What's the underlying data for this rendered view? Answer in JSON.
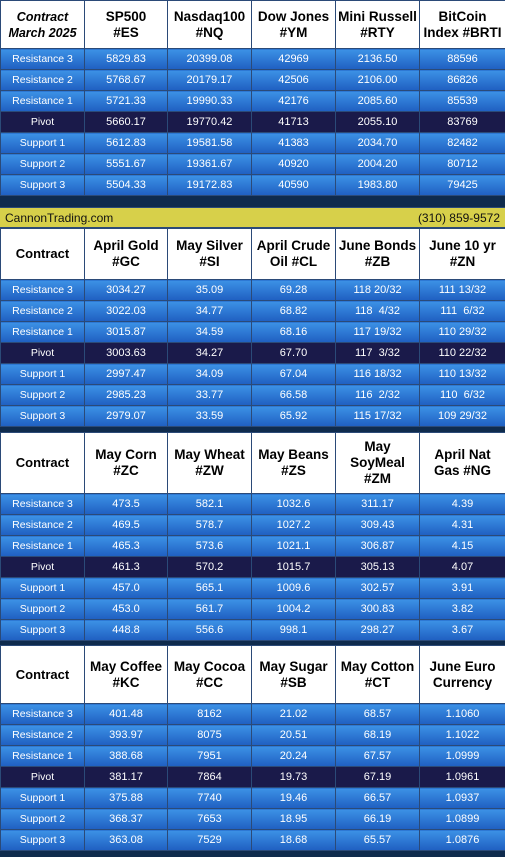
{
  "labels": {
    "contract": "Contract",
    "contract_month": "Contract\nMarch 2025",
    "rows": [
      "Resistance 3",
      "Resistance 2",
      "Resistance 1",
      "Pivot",
      "Support 1",
      "Support 2",
      "Support 3"
    ]
  },
  "banner": {
    "site": "CannonTrading.com",
    "phone": "(310) 859-9572"
  },
  "sections": [
    {
      "headers": [
        "Contract\nMarch 2025",
        "SP500\n#ES",
        "Nasdaq100\n#NQ",
        "Dow Jones\n#YM",
        "Mini Russell\n#RTY",
        "BitCoin\nIndex #BRTI"
      ],
      "values": [
        [
          "5829.83",
          "20399.08",
          "42969",
          "2136.50",
          "88596"
        ],
        [
          "5768.67",
          "20179.17",
          "42506",
          "2106.00",
          "86826"
        ],
        [
          "5721.33",
          "19990.33",
          "42176",
          "2085.60",
          "85539"
        ],
        [
          "5660.17",
          "19770.42",
          "41713",
          "2055.10",
          "83769"
        ],
        [
          "5612.83",
          "19581.58",
          "41383",
          "2034.70",
          "82482"
        ],
        [
          "5551.67",
          "19361.67",
          "40920",
          "2004.20",
          "80712"
        ],
        [
          "5504.33",
          "19172.83",
          "40590",
          "1983.80",
          "79425"
        ]
      ]
    },
    {
      "headers": [
        "Contract",
        "April Gold\n#GC",
        "May Silver\n#SI",
        "April Crude\nOil #CL",
        "June Bonds\n#ZB",
        "June 10 yr\n#ZN"
      ],
      "values": [
        [
          "3034.27",
          "35.09",
          "69.28",
          "118 20/32",
          "111 13/32"
        ],
        [
          "3022.03",
          "34.77",
          "68.82",
          "118  4/32",
          "111  6/32"
        ],
        [
          "3015.87",
          "34.59",
          "68.16",
          "117 19/32",
          "110 29/32"
        ],
        [
          "3003.63",
          "34.27",
          "67.70",
          "117  3/32",
          "110 22/32"
        ],
        [
          "2997.47",
          "34.09",
          "67.04",
          "116 18/32",
          "110 13/32"
        ],
        [
          "2985.23",
          "33.77",
          "66.58",
          "116  2/32",
          "110  6/32"
        ],
        [
          "2979.07",
          "33.59",
          "65.92",
          "115 17/32",
          "109 29/32"
        ]
      ]
    },
    {
      "headers": [
        "Contract",
        "May Corn\n#ZC",
        "May  Wheat\n#ZW",
        "May Beans\n#ZS",
        "May\nSoyMeal\n#ZM",
        "April Nat\nGas #NG"
      ],
      "values": [
        [
          "473.5",
          "582.1",
          "1032.6",
          "311.17",
          "4.39"
        ],
        [
          "469.5",
          "578.7",
          "1027.2",
          "309.43",
          "4.31"
        ],
        [
          "465.3",
          "573.6",
          "1021.1",
          "306.87",
          "4.15"
        ],
        [
          "461.3",
          "570.2",
          "1015.7",
          "305.13",
          "4.07"
        ],
        [
          "457.0",
          "565.1",
          "1009.6",
          "302.57",
          "3.91"
        ],
        [
          "453.0",
          "561.7",
          "1004.2",
          "300.83",
          "3.82"
        ],
        [
          "448.8",
          "556.6",
          "998.1",
          "298.27",
          "3.67"
        ]
      ]
    },
    {
      "headers": [
        "Contract",
        "May Coffee\n#KC",
        "May Cocoa\n#CC",
        "May Sugar\n#SB",
        "May Cotton\n#CT",
        "June Euro\nCurrency"
      ],
      "values": [
        [
          "401.48",
          "8162",
          "21.02",
          "68.57",
          "1.1060"
        ],
        [
          "393.97",
          "8075",
          "20.51",
          "68.19",
          "1.1022"
        ],
        [
          "388.68",
          "7951",
          "20.24",
          "67.57",
          "1.0999"
        ],
        [
          "381.17",
          "7864",
          "19.73",
          "67.19",
          "1.0961"
        ],
        [
          "375.88",
          "7740",
          "19.46",
          "66.57",
          "1.0937"
        ],
        [
          "368.37",
          "7653",
          "18.95",
          "66.19",
          "1.0899"
        ],
        [
          "363.08",
          "7529",
          "18.68",
          "65.57",
          "1.0876"
        ]
      ]
    }
  ]
}
